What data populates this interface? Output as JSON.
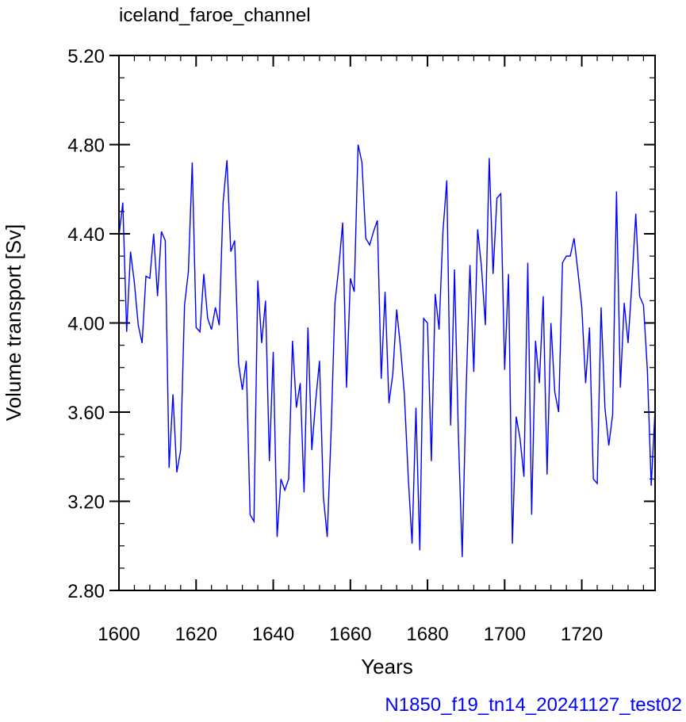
{
  "chart_data": {
    "type": "line",
    "title": "iceland_faroe_channel",
    "xlabel": "Years",
    "ylabel": "Volume transport [Sv]",
    "caption": "N1850_f19_tn14_20241127_test02",
    "xlim": [
      1600,
      1739
    ],
    "ylim": [
      2.8,
      5.2
    ],
    "x_ticks": [
      "1600",
      "1620",
      "1640",
      "1660",
      "1680",
      "1700",
      "1720"
    ],
    "y_ticks": [
      "2.80",
      "3.20",
      "3.60",
      "4.00",
      "4.40",
      "4.80",
      "5.20"
    ],
    "grid": false,
    "series": [
      {
        "color": "#0000ff",
        "x_start": 1600,
        "x_step": 1,
        "values": [
          4.39,
          4.54,
          3.96,
          4.32,
          4.18,
          3.99,
          3.91,
          4.21,
          4.2,
          4.4,
          4.12,
          4.41,
          4.37,
          3.35,
          3.68,
          3.33,
          3.43,
          4.08,
          4.23,
          4.72,
          3.98,
          3.96,
          4.22,
          4.02,
          3.97,
          4.07,
          3.99,
          4.54,
          4.73,
          4.32,
          4.37,
          3.82,
          3.7,
          3.83,
          3.14,
          3.11,
          4.19,
          3.91,
          4.1,
          3.38,
          3.87,
          3.04,
          3.3,
          3.25,
          3.3,
          3.92,
          3.62,
          3.73,
          3.24,
          3.98,
          3.43,
          3.65,
          3.83,
          3.22,
          3.04,
          3.51,
          4.09,
          4.25,
          4.45,
          3.71,
          4.2,
          4.14,
          4.8,
          4.72,
          4.38,
          4.35,
          4.41,
          4.46,
          3.75,
          4.14,
          3.64,
          3.77,
          4.06,
          3.89,
          3.68,
          3.31,
          3.01,
          3.62,
          2.98,
          4.02,
          4.0,
          3.38,
          4.13,
          3.97,
          4.41,
          4.64,
          3.54,
          4.24,
          3.5,
          2.95,
          3.69,
          4.26,
          3.78,
          4.42,
          4.25,
          3.99,
          4.74,
          4.22,
          4.56,
          4.58,
          3.79,
          4.22,
          3.01,
          3.58,
          3.48,
          3.31,
          4.27,
          3.14,
          3.92,
          3.73,
          4.12,
          3.32,
          4.0,
          3.69,
          3.6,
          4.27,
          4.3,
          4.3,
          4.38,
          4.23,
          4.07,
          3.73,
          3.98,
          3.3,
          3.28,
          4.07,
          3.62,
          3.45,
          3.59,
          4.59,
          3.71,
          4.09,
          3.91,
          4.18,
          4.49,
          4.12,
          4.08,
          3.79,
          3.27,
          3.61
        ]
      }
    ]
  }
}
